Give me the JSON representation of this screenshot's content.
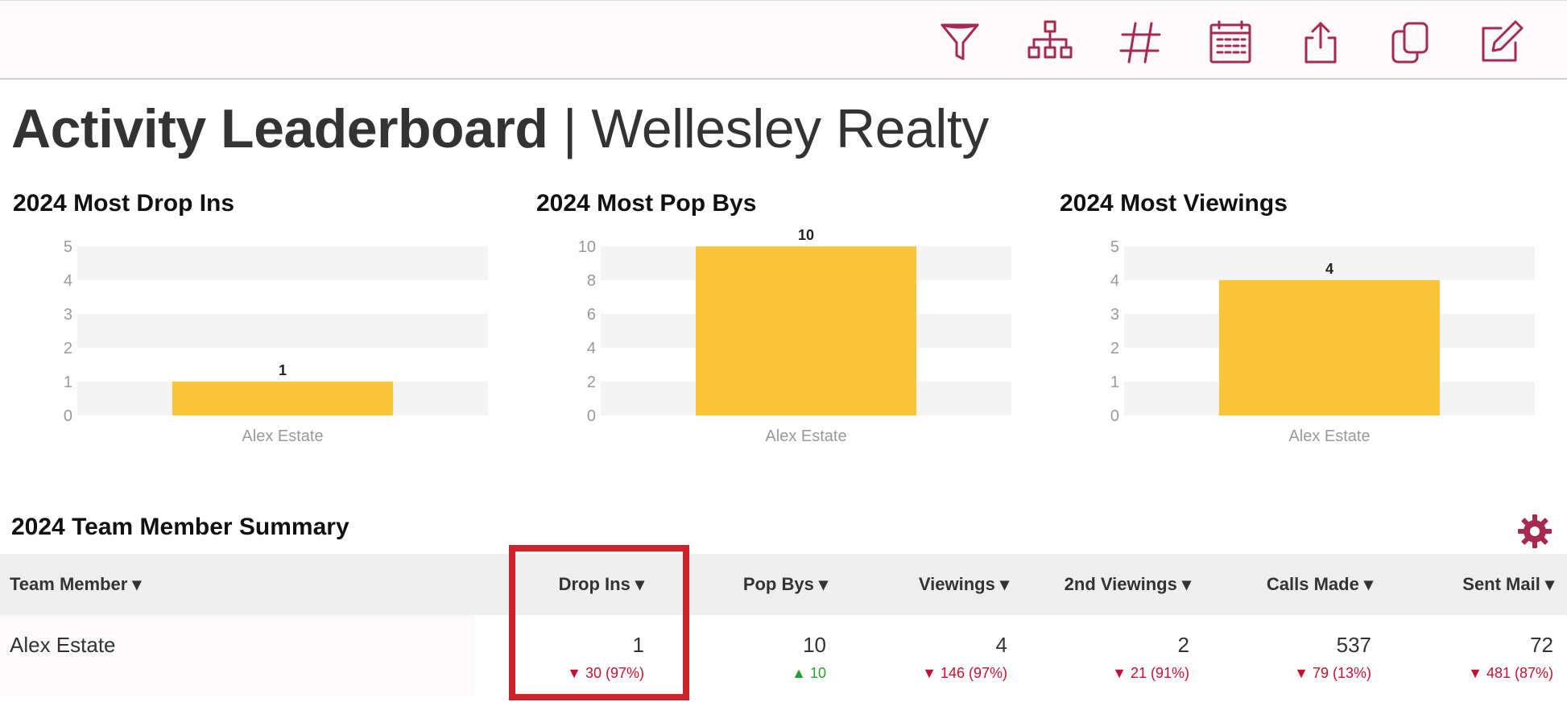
{
  "toolbar": {
    "icons": [
      "funnel-icon",
      "org-chart-icon",
      "hashtag-icon",
      "calendar-icon",
      "share-icon",
      "copy-icon",
      "edit-icon"
    ]
  },
  "header": {
    "title_bold": "Activity Leaderboard",
    "separator": "|",
    "org_name": "Wellesley Realty"
  },
  "colors": {
    "accent": "#a8294f",
    "bar": "#fbc43a",
    "down": "#c8102e",
    "up": "#1fa32b",
    "highlight": "#cc2229"
  },
  "chart_data": [
    {
      "type": "bar",
      "title": "2024 Most Drop Ins",
      "categories": [
        "Alex Estate"
      ],
      "values": [
        1
      ],
      "ylim": [
        0,
        5
      ],
      "yticks": [
        0,
        1,
        2,
        3,
        4,
        5
      ],
      "xlabel": "",
      "ylabel": ""
    },
    {
      "type": "bar",
      "title": "2024 Most Pop Bys",
      "categories": [
        "Alex Estate"
      ],
      "values": [
        10
      ],
      "ylim": [
        0,
        10
      ],
      "yticks": [
        0,
        2,
        4,
        6,
        8,
        10
      ],
      "xlabel": "",
      "ylabel": ""
    },
    {
      "type": "bar",
      "title": "2024 Most Viewings",
      "categories": [
        "Alex Estate"
      ],
      "values": [
        4
      ],
      "ylim": [
        0,
        5
      ],
      "yticks": [
        0,
        1,
        2,
        3,
        4,
        5
      ],
      "xlabel": "",
      "ylabel": ""
    }
  ],
  "summary": {
    "title": "2024 Team Member Summary",
    "columns": [
      "Team Member ▾",
      "Drop Ins ▾",
      "Pop Bys ▾",
      "Viewings ▾",
      "2nd Viewings ▾",
      "Calls Made ▾",
      "Sent Mail ▾"
    ],
    "rows": [
      {
        "member": "Alex Estate",
        "values": [
          "1",
          "10",
          "4",
          "2",
          "537",
          "72"
        ],
        "deltas": [
          "▼ 30 (97%)",
          "▲ 10",
          "▼ 146 (97%)",
          "▼ 21 (91%)",
          "▼ 79 (13%)",
          "▼ 481 (87%)"
        ],
        "delta_dirs": [
          "down",
          "up",
          "down",
          "down",
          "down",
          "down"
        ]
      }
    ]
  }
}
